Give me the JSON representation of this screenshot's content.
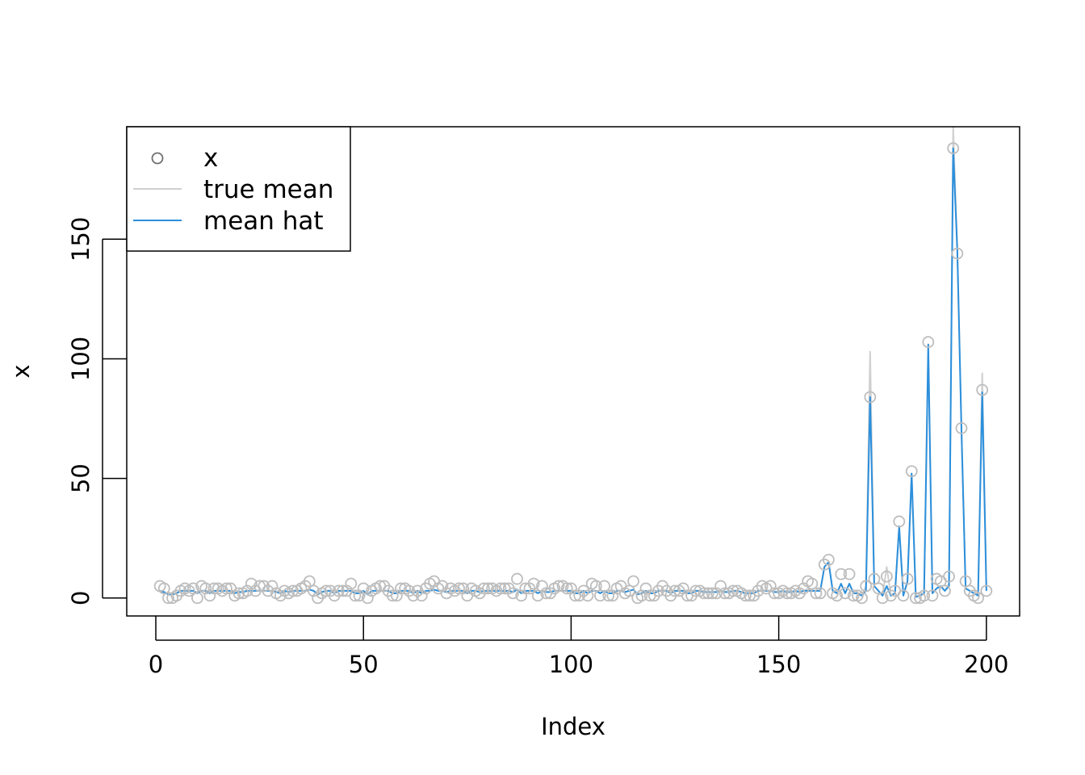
{
  "chart_data": {
    "type": "line",
    "xlabel": "Index",
    "ylabel": "x",
    "xlim": [
      -7,
      208
    ],
    "ylim": [
      -7.5,
      197
    ],
    "xticks": [
      0,
      50,
      100,
      150,
      200
    ],
    "yticks": [
      0,
      50,
      100,
      150
    ],
    "legend": {
      "position": "top-left",
      "entries": [
        {
          "label": "x",
          "kind": "points"
        },
        {
          "label": "true mean",
          "kind": "line"
        },
        {
          "label": "mean hat",
          "kind": "line"
        }
      ]
    },
    "colors": {
      "points": "#bdbdbd",
      "true_mean": "#d0d0d0",
      "mean_hat": "#2b8fdc",
      "legend_point": "#6e6e6e"
    },
    "series": [
      {
        "name": "x",
        "kind": "points",
        "values": [
          5,
          4,
          0,
          0,
          1,
          3,
          4,
          3,
          4,
          0,
          5,
          4,
          1,
          4,
          4,
          3,
          4,
          4,
          1,
          2,
          2,
          3,
          6,
          3,
          5,
          5,
          3,
          5,
          2,
          1,
          3,
          2,
          3,
          3,
          4,
          5,
          7,
          3,
          0,
          2,
          3,
          3,
          1,
          3,
          3,
          3,
          6,
          1,
          1,
          4,
          0,
          3,
          4,
          5,
          5,
          3,
          1,
          1,
          4,
          4,
          3,
          1,
          3,
          1,
          4,
          6,
          7,
          4,
          5,
          2,
          4,
          3,
          4,
          4,
          1,
          4,
          3,
          2,
          4,
          4,
          4,
          3,
          4,
          4,
          4,
          2,
          8,
          1,
          4,
          4,
          6,
          1,
          5,
          2,
          2,
          4,
          5,
          5,
          4,
          4,
          1,
          1,
          3,
          1,
          6,
          5,
          1,
          5,
          1,
          1,
          4,
          5,
          2,
          3,
          7,
          0,
          1,
          4,
          1,
          1,
          3,
          5,
          3,
          1,
          3,
          3,
          4,
          1,
          1,
          3,
          3,
          2,
          2,
          2,
          2,
          5,
          2,
          2,
          3,
          3,
          2,
          1,
          1,
          1,
          3,
          5,
          4,
          5,
          2,
          2,
          3,
          2,
          2,
          3,
          2,
          4,
          7,
          6,
          2,
          2,
          14,
          16,
          2,
          1,
          10,
          2,
          10,
          1,
          1,
          0,
          5,
          84,
          8,
          4,
          0,
          9,
          1,
          3,
          32,
          1,
          8,
          53,
          0,
          0,
          1,
          107,
          1,
          8,
          7,
          3,
          9,
          188,
          144,
          71,
          7,
          3,
          1,
          0,
          87,
          3
        ]
      },
      {
        "name": "true mean",
        "kind": "line",
        "values": [
          3,
          2.5,
          1.5,
          1.5,
          2,
          3,
          3,
          3,
          3,
          2,
          3,
          3,
          2,
          3,
          3,
          3,
          3,
          3,
          2,
          2.5,
          2.5,
          3,
          3,
          3,
          3,
          3,
          3,
          3,
          2.5,
          2,
          3,
          2.5,
          3,
          3,
          3,
          3,
          3.5,
          3,
          1.5,
          2.5,
          3,
          3,
          2,
          3,
          3,
          3,
          3,
          2,
          2,
          3,
          1.5,
          3,
          3,
          3,
          3,
          3,
          2,
          2,
          3,
          3,
          3,
          2,
          3,
          2,
          3,
          3,
          3.5,
          3,
          3,
          2.5,
          3,
          3,
          3,
          3,
          2,
          3,
          3,
          2.5,
          3,
          3,
          3,
          3,
          3,
          3,
          3,
          2.5,
          3.5,
          2,
          3,
          3,
          3,
          2,
          3,
          2.5,
          2.5,
          3,
          3,
          3,
          3,
          3,
          2,
          2,
          3,
          2,
          3,
          3,
          2,
          3,
          2,
          2,
          3,
          3,
          2.5,
          3,
          3.5,
          1.5,
          2,
          3,
          2,
          2,
          3,
          3,
          3,
          2,
          3,
          3,
          3,
          2,
          2,
          3,
          3,
          2.5,
          2.5,
          2.5,
          2.5,
          3,
          2.5,
          2.5,
          3,
          3,
          2.5,
          2,
          2,
          2,
          3,
          3,
          3,
          3,
          2.5,
          2.5,
          3,
          2.5,
          2.5,
          3,
          2.5,
          3,
          4,
          3,
          3,
          3,
          13,
          15,
          3,
          2,
          6,
          2,
          6,
          2,
          2,
          1,
          5,
          103,
          5,
          3,
          1,
          13,
          1,
          2,
          30,
          1,
          7,
          52,
          0.5,
          1,
          2,
          104,
          2,
          4,
          5,
          3,
          6,
          197,
          146,
          71,
          4,
          3,
          2,
          1,
          94,
          3
        ]
      },
      {
        "name": "mean hat",
        "kind": "line",
        "values": [
          3,
          2.5,
          1.5,
          1.5,
          2,
          3,
          3,
          3,
          3,
          2,
          3,
          3,
          2,
          3,
          3,
          3,
          3,
          3,
          2,
          2.5,
          2.5,
          3,
          3,
          3,
          3,
          3,
          3,
          3,
          2.5,
          2,
          3,
          2.5,
          3,
          3,
          3,
          3,
          3.5,
          3,
          1.5,
          2.5,
          3,
          3,
          2,
          3,
          3,
          3,
          3,
          2,
          2,
          3,
          1.5,
          3,
          3,
          3,
          3,
          3,
          2,
          2,
          3,
          3,
          3,
          2,
          3,
          2,
          3,
          3,
          3.5,
          3,
          3,
          2.5,
          3,
          3,
          3,
          3,
          2,
          3,
          3,
          2.5,
          3,
          3,
          3,
          3,
          3,
          3,
          3,
          2.5,
          3.5,
          2,
          3,
          3,
          3,
          2,
          3,
          2.5,
          2.5,
          3,
          3,
          3,
          3,
          3,
          2,
          2,
          3,
          2,
          3,
          3,
          2,
          3,
          2,
          2,
          3,
          3,
          2.5,
          3,
          3.5,
          1.5,
          2,
          3,
          2,
          2,
          3,
          3,
          3,
          2,
          3,
          3,
          3,
          2,
          2,
          3,
          3,
          2.5,
          2.5,
          2.5,
          2.5,
          3,
          2.5,
          2.5,
          3,
          3,
          2.5,
          2,
          2,
          2,
          3,
          3,
          3,
          3,
          2.5,
          2.5,
          3,
          2.5,
          2.5,
          3,
          2.5,
          3,
          3,
          3,
          3,
          3,
          13,
          15,
          3,
          2,
          6,
          2,
          6,
          2,
          2,
          1,
          3,
          84,
          5,
          3,
          1,
          5,
          1,
          2,
          30,
          1,
          7,
          52,
          0.5,
          1,
          2,
          106,
          2,
          4,
          5,
          3,
          5,
          188,
          145,
          70,
          4,
          3,
          2,
          1,
          86,
          3
        ]
      }
    ]
  }
}
